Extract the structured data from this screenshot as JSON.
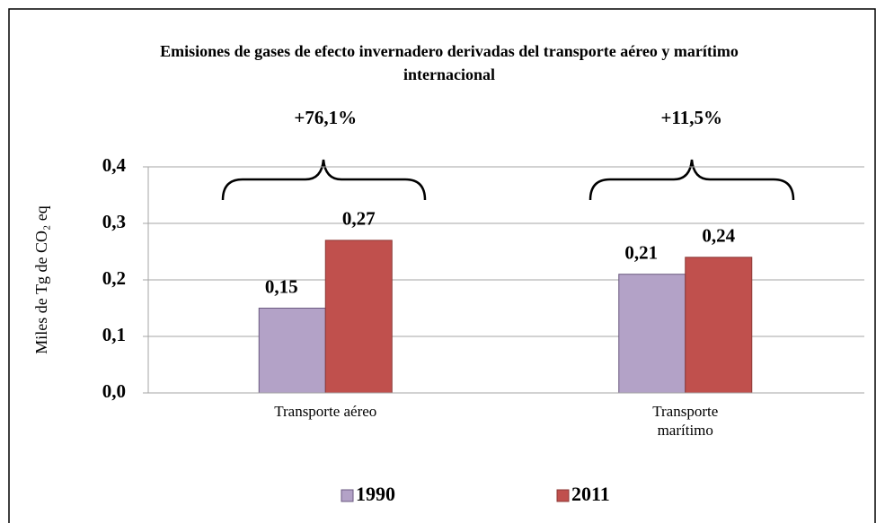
{
  "chart_data": {
    "type": "bar",
    "title": "Emisiones de gases de efecto invernadero derivadas del transporte aéreo y marítimo internacional",
    "y_label": "Miles de Tg de CO₂ eq",
    "categories": [
      "Transporte aéreo",
      "Transporte marítimo"
    ],
    "series": [
      {
        "name": "1990",
        "color": "#b3a2c7",
        "values": [
          0.15,
          0.21
        ],
        "value_labels": [
          "0,15",
          "0,21"
        ]
      },
      {
        "name": "2011",
        "color": "#c0504d",
        "values": [
          0.27,
          0.24
        ],
        "value_labels": [
          "0,27",
          "0,24"
        ]
      }
    ],
    "annotations": [
      "+76,1%",
      "+11,5%"
    ],
    "ylim": [
      0,
      0.4
    ],
    "yticks": [
      {
        "value": 0,
        "label": "0,0"
      },
      {
        "value": 0.1,
        "label": "0,1"
      },
      {
        "value": 0.2,
        "label": "0,2"
      },
      {
        "value": 0.3,
        "label": "0,3"
      },
      {
        "value": 0.4,
        "label": "0,4"
      }
    ],
    "grid": true,
    "legend": "bottom"
  }
}
